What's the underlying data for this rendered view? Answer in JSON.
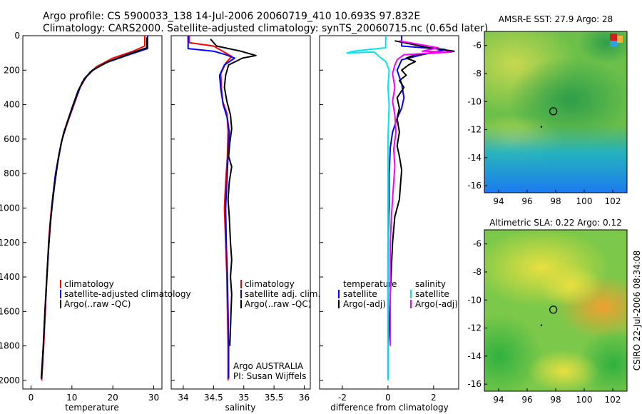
{
  "header": {
    "title_line1": "Argo profile: CS 5900033_138 14-Jul-2006 20060719_410 10.693S 97.832E",
    "title_line2": "Climatology: CARS2000. Satellite-adjusted climatology: synTS_20060715.nc (0.65d later)"
  },
  "side_credit": "CSIRO 22-Jul-2006 08:34:08",
  "colors": {
    "climatology": "#ff0000",
    "satellite": "#0000ff",
    "argo": "#000000",
    "salinity_sat": "#00e5ee",
    "salinity_argo": "#ff00ff"
  },
  "chart_data": [
    {
      "type": "line",
      "id": "temperature",
      "xlabel": "temperature",
      "ylabel": "",
      "xlim": [
        -2,
        32
      ],
      "ylim": [
        2050,
        0
      ],
      "xticks": [
        "0",
        "10",
        "20",
        "30"
      ],
      "xtick_values": [
        0,
        10,
        20,
        30
      ],
      "yticks": [
        "0",
        "200",
        "400",
        "600",
        "800",
        "1000",
        "1200",
        "1400",
        "1600",
        "1800",
        "2000"
      ],
      "ytick_values": [
        0,
        200,
        400,
        600,
        800,
        1000,
        1200,
        1400,
        1600,
        1800,
        2000
      ],
      "legend": [
        "climatology",
        "satellite-adjusted climatology",
        "Argo(..raw -QC)"
      ],
      "series": [
        {
          "name": "climatology",
          "color": "#ff0000",
          "points": [
            [
              27.8,
              0
            ],
            [
              27.8,
              60
            ],
            [
              25,
              90
            ],
            [
              20,
              130
            ],
            [
              16,
              180
            ],
            [
              13.5,
              240
            ],
            [
              12,
              300
            ],
            [
              10.5,
              400
            ],
            [
              9,
              500
            ],
            [
              7.6,
              600
            ],
            [
              6.8,
              700
            ],
            [
              6,
              800
            ],
            [
              5.5,
              900
            ],
            [
              5,
              1000
            ],
            [
              4.6,
              1100
            ],
            [
              4.3,
              1200
            ],
            [
              3.9,
              1400
            ],
            [
              3.5,
              1600
            ],
            [
              3.1,
              1800
            ],
            [
              2.6,
              2000
            ]
          ]
        },
        {
          "name": "satellite-adjusted climatology",
          "color": "#0000ff",
          "points": [
            [
              28.5,
              0
            ],
            [
              28.5,
              75
            ],
            [
              24,
              110
            ],
            [
              18,
              160
            ],
            [
              14.5,
              210
            ],
            [
              12.5,
              270
            ],
            [
              11,
              360
            ],
            [
              9.5,
              460
            ],
            [
              8,
              560
            ],
            [
              6.9,
              680
            ],
            [
              6,
              800
            ],
            [
              5.4,
              920
            ],
            [
              4.9,
              1040
            ],
            [
              4.4,
              1200
            ],
            [
              3.9,
              1400
            ],
            [
              3.4,
              1600
            ],
            [
              3,
              1800
            ],
            [
              2.6,
              1990
            ]
          ]
        },
        {
          "name": "Argo(..raw -QC)",
          "color": "#000000",
          "points": [
            [
              28.3,
              10
            ],
            [
              28.3,
              70
            ],
            [
              24,
              105
            ],
            [
              19,
              150
            ],
            [
              15,
              200
            ],
            [
              13,
              250
            ],
            [
              11.5,
              320
            ],
            [
              10,
              420
            ],
            [
              8.6,
              520
            ],
            [
              7.4,
              620
            ],
            [
              6.5,
              740
            ],
            [
              5.8,
              860
            ],
            [
              5.2,
              980
            ],
            [
              4.7,
              1100
            ],
            [
              4.2,
              1260
            ],
            [
              3.8,
              1420
            ],
            [
              3.4,
              1600
            ],
            [
              3,
              1800
            ],
            [
              2.5,
              1990
            ]
          ]
        }
      ]
    },
    {
      "type": "line",
      "id": "salinity",
      "xlabel": "salinity",
      "xlim": [
        33.8,
        36.1
      ],
      "ylim": [
        2050,
        0
      ],
      "xticks": [
        "34",
        "34.5",
        "35",
        "35.5",
        "36"
      ],
      "xtick_values": [
        34,
        34.5,
        35,
        35.5,
        36
      ],
      "legend": [
        "climatology",
        "satellite adj. clim.",
        "Argo(..raw -QC)"
      ],
      "notes": [
        "Argo AUSTRALIA",
        "PI: Susan Wijffels"
      ],
      "series": [
        {
          "name": "climatology",
          "color": "#ff0000",
          "points": [
            [
              34.1,
              0
            ],
            [
              34.1,
              40
            ],
            [
              34.5,
              60
            ],
            [
              34.65,
              90
            ],
            [
              34.8,
              120
            ],
            [
              34.7,
              160
            ],
            [
              34.62,
              220
            ],
            [
              34.63,
              300
            ],
            [
              34.65,
              380
            ],
            [
              34.72,
              450
            ],
            [
              34.74,
              550
            ],
            [
              34.73,
              700
            ],
            [
              34.7,
              850
            ],
            [
              34.68,
              1000
            ],
            [
              34.7,
              1200
            ],
            [
              34.72,
              1400
            ],
            [
              34.73,
              1600
            ],
            [
              34.74,
              1800
            ],
            [
              34.74,
              2000
            ]
          ]
        },
        {
          "name": "satellite adj. clim.",
          "color": "#0000ff",
          "points": [
            [
              34.08,
              0
            ],
            [
              34.08,
              75
            ],
            [
              34.5,
              90
            ],
            [
              34.7,
              110
            ],
            [
              34.85,
              130
            ],
            [
              34.68,
              170
            ],
            [
              34.6,
              230
            ],
            [
              34.62,
              310
            ],
            [
              34.66,
              400
            ],
            [
              34.73,
              480
            ],
            [
              34.76,
              560
            ],
            [
              34.74,
              700
            ],
            [
              34.72,
              850
            ],
            [
              34.7,
              1000
            ],
            [
              34.71,
              1200
            ],
            [
              34.73,
              1400
            ],
            [
              34.74,
              1600
            ],
            [
              34.75,
              1800
            ],
            [
              34.75,
              1990
            ]
          ]
        },
        {
          "name": "Argo(..raw -QC)",
          "color": "#000000",
          "points": [
            [
              34.45,
              20
            ],
            [
              34.55,
              60
            ],
            [
              34.95,
              90
            ],
            [
              35.2,
              115
            ],
            [
              34.98,
              130
            ],
            [
              34.75,
              170
            ],
            [
              34.7,
              230
            ],
            [
              34.68,
              300
            ],
            [
              34.72,
              380
            ],
            [
              34.78,
              460
            ],
            [
              34.8,
              540
            ],
            [
              34.77,
              620
            ],
            [
              34.75,
              700
            ],
            [
              34.8,
              760
            ],
            [
              34.76,
              850
            ],
            [
              34.74,
              950
            ],
            [
              34.76,
              1050
            ],
            [
              34.78,
              1200
            ],
            [
              34.8,
              1300
            ],
            [
              34.78,
              1400
            ],
            [
              34.8,
              1500
            ],
            [
              34.79,
              1600
            ],
            [
              34.78,
              1700
            ],
            [
              34.77,
              1800
            ]
          ]
        }
      ]
    },
    {
      "type": "line",
      "id": "difference",
      "xlabel": "difference from climatology",
      "xlim": [
        -3,
        3.1
      ],
      "ylim": [
        2050,
        0
      ],
      "xticks": [
        "-2",
        "0",
        "2"
      ],
      "xtick_values": [
        -2,
        0,
        2
      ],
      "legend_left": [
        "temperature",
        "satellite",
        "Argo(-adj)"
      ],
      "legend_right": [
        "salinity",
        "satellite",
        "Argo(-adj)"
      ],
      "series": [
        {
          "name": "temperature satellite",
          "color": "#0000ff",
          "points": [
            [
              0.6,
              0
            ],
            [
              0.6,
              60
            ],
            [
              2.5,
              80
            ],
            [
              1.5,
              110
            ],
            [
              0.6,
              140
            ],
            [
              0.4,
              200
            ],
            [
              0.6,
              280
            ],
            [
              0.7,
              360
            ],
            [
              0.6,
              420
            ],
            [
              0.4,
              480
            ],
            [
              0.2,
              560
            ],
            [
              0.1,
              650
            ],
            [
              0.05,
              800
            ],
            [
              0.05,
              1000
            ],
            [
              0,
              1200
            ],
            [
              0,
              1500
            ],
            [
              0,
              1800
            ],
            [
              0,
              1990
            ]
          ]
        },
        {
          "name": "temperature Argo(-adj)",
          "color": "#000000",
          "points": [
            [
              0.3,
              30
            ],
            [
              1.8,
              70
            ],
            [
              2.9,
              90
            ],
            [
              1.2,
              110
            ],
            [
              0.8,
              130
            ],
            [
              1.2,
              150
            ],
            [
              0.9,
              170
            ],
            [
              0.6,
              200
            ],
            [
              0.8,
              230
            ],
            [
              0.5,
              260
            ],
            [
              0.7,
              300
            ],
            [
              0.4,
              360
            ],
            [
              0.5,
              420
            ],
            [
              0.4,
              480
            ],
            [
              0.5,
              560
            ],
            [
              0.4,
              640
            ],
            [
              0.5,
              700
            ],
            [
              0.6,
              780
            ],
            [
              0.55,
              860
            ],
            [
              0.5,
              950
            ],
            [
              0.3,
              1050
            ],
            [
              0.2,
              1200
            ],
            [
              0.15,
              1350
            ],
            [
              0.1,
              1500
            ],
            [
              0.05,
              1700
            ],
            [
              0,
              1800
            ]
          ]
        },
        {
          "name": "salinity satellite",
          "color": "#00e5ee",
          "points": [
            [
              -0.1,
              0
            ],
            [
              -0.1,
              70
            ],
            [
              -1.5,
              90
            ],
            [
              -1.8,
              100
            ],
            [
              -0.6,
              95
            ],
            [
              -0.4,
              120
            ],
            [
              -0.1,
              150
            ],
            [
              0.05,
              200
            ],
            [
              0,
              300
            ],
            [
              0.05,
              400
            ],
            [
              0,
              600
            ],
            [
              0,
              800
            ],
            [
              0,
              1000
            ],
            [
              0,
              1200
            ],
            [
              0,
              1400
            ],
            [
              0,
              1600
            ],
            [
              0,
              1800
            ],
            [
              0,
              2000
            ]
          ]
        },
        {
          "name": "salinity Argo(-adj)",
          "color": "#ff00ff",
          "points": [
            [
              0.5,
              30
            ],
            [
              2.2,
              70
            ],
            [
              1.5,
              90
            ],
            [
              2.8,
              95
            ],
            [
              0.7,
              110
            ],
            [
              0.4,
              140
            ],
            [
              0.3,
              170
            ],
            [
              0.2,
              220
            ],
            [
              0.3,
              300
            ],
            [
              0.2,
              380
            ],
            [
              0.3,
              460
            ],
            [
              0.35,
              560
            ],
            [
              0.25,
              660
            ],
            [
              0.3,
              760
            ],
            [
              0.25,
              850
            ],
            [
              0.2,
              950
            ],
            [
              0.15,
              1050
            ],
            [
              0.1,
              1200
            ],
            [
              0.1,
              1400
            ],
            [
              0.1,
              1600
            ],
            [
              0.1,
              1800
            ]
          ]
        }
      ]
    },
    {
      "type": "heatmap",
      "id": "sst_map",
      "title": "AMSR-E SST: 27.9 Argo: 28",
      "xlim": [
        93,
        103
      ],
      "ylim": [
        -16.5,
        -5
      ],
      "xticks": [
        "94",
        "96",
        "98",
        "100",
        "102"
      ],
      "xtick_values": [
        94,
        96,
        98,
        100,
        102
      ],
      "yticks": [
        "-6",
        "-8",
        "-10",
        "-12",
        "-14",
        "-16"
      ],
      "ytick_values": [
        -6,
        -8,
        -10,
        -12,
        -14,
        -16
      ],
      "marker": {
        "lon": 97.832,
        "lat": -10.693
      }
    },
    {
      "type": "heatmap",
      "id": "sla_map",
      "title": "Altimetric SLA: 0.22 Argo: 0.12",
      "xlim": [
        93,
        103
      ],
      "ylim": [
        -16.5,
        -5
      ],
      "xticks": [
        "94",
        "96",
        "98",
        "100",
        "102"
      ],
      "xtick_values": [
        94,
        96,
        98,
        100,
        102
      ],
      "yticks": [
        "-6",
        "-8",
        "-10",
        "-12",
        "-14",
        "-16"
      ],
      "ytick_values": [
        -6,
        -8,
        -10,
        -12,
        -14,
        -16
      ],
      "marker": {
        "lon": 97.832,
        "lat": -10.693
      }
    }
  ]
}
